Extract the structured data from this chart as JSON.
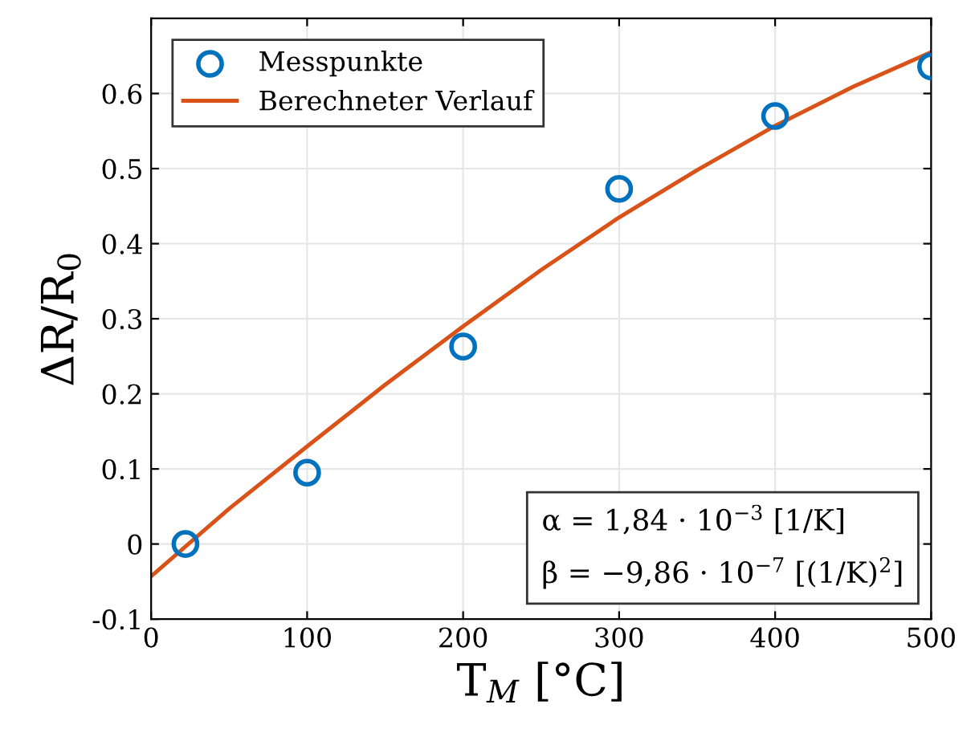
{
  "chart_data": {
    "type": "scatter",
    "xlabel": "T$_{M}$ [°C]",
    "ylabel": "ΔR/R$_{0}$",
    "xlim": [
      0,
      500
    ],
    "xticks": [
      0,
      100,
      200,
      300,
      400,
      500
    ],
    "ylim": [
      -0.1,
      0.7
    ],
    "yticks": [
      -0.1,
      0,
      0.1,
      0.2,
      0.3,
      0.4,
      0.5,
      0.6
    ],
    "grid": true,
    "legend": "top left",
    "series": [
      {
        "name": "Messpunkte",
        "marker": "circle",
        "color": "#0072bd",
        "x": [
          22,
          100,
          200,
          300,
          400,
          500
        ],
        "values": [
          0,
          0.095,
          0.263,
          0.473,
          0.57,
          0.636
        ]
      },
      {
        "name": "Berechneter Verlauf",
        "type": "line",
        "marker": "none",
        "line_style": "solid",
        "color": "#d95319",
        "x": [
          0,
          50,
          100,
          150,
          200,
          250,
          300,
          350,
          400,
          450,
          500
        ],
        "values": [
          -0.043,
          0.047,
          0.13,
          0.212,
          0.29,
          0.365,
          0.435,
          0.498,
          0.557,
          0.609,
          0.655
        ]
      }
    ],
    "annotations": [
      "α = 1,84 · 10$^{−3}$ [1/K]",
      "β = −9,86 · 10$^{−7}$ [(1/K)$^{2}$]"
    ]
  }
}
